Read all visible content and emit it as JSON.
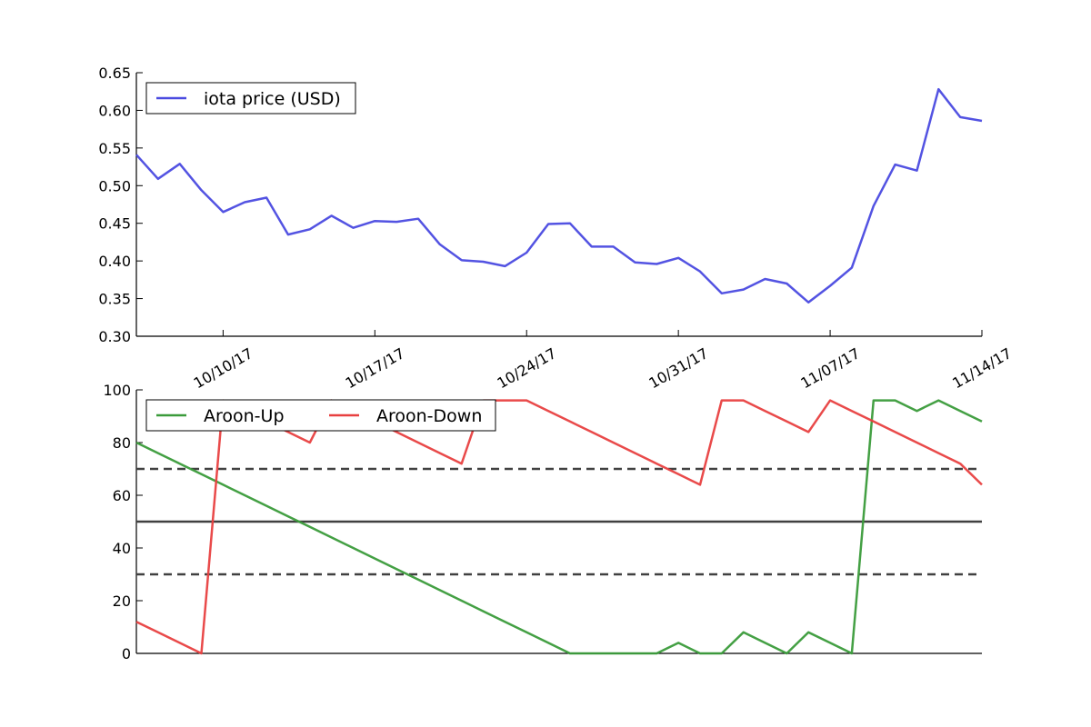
{
  "chart_data": [
    {
      "type": "line",
      "title": "",
      "xlabel": "",
      "ylabel": "",
      "ylim": [
        0.3,
        0.65
      ],
      "yticks": [
        "0.30",
        "0.35",
        "0.40",
        "0.45",
        "0.50",
        "0.55",
        "0.60",
        "0.65"
      ],
      "xticks": [
        "10/10/17",
        "10/17/17",
        "10/24/17",
        "10/31/17",
        "11/07/17",
        "11/14/17"
      ],
      "x": [
        "10/06/17",
        "10/07/17",
        "10/08/17",
        "10/09/17",
        "10/10/17",
        "10/11/17",
        "10/12/17",
        "10/13/17",
        "10/14/17",
        "10/15/17",
        "10/16/17",
        "10/17/17",
        "10/18/17",
        "10/19/17",
        "10/20/17",
        "10/21/17",
        "10/22/17",
        "10/23/17",
        "10/24/17",
        "10/25/17",
        "10/26/17",
        "10/27/17",
        "10/28/17",
        "10/29/17",
        "10/30/17",
        "10/31/17",
        "11/01/17",
        "11/02/17",
        "11/03/17",
        "11/04/17",
        "11/05/17",
        "11/06/17",
        "11/07/17",
        "11/08/17",
        "11/09/17",
        "11/10/17",
        "11/11/17",
        "11/12/17",
        "11/13/17",
        "11/14/17"
      ],
      "grid": false,
      "legend_position": "upper-left",
      "series": [
        {
          "name": "iota price (USD)",
          "color": "#4a4ae0",
          "values": [
            0.541,
            0.509,
            0.529,
            0.494,
            0.465,
            0.478,
            0.484,
            0.435,
            0.442,
            0.46,
            0.444,
            0.453,
            0.452,
            0.456,
            0.422,
            0.401,
            0.399,
            0.393,
            0.411,
            0.449,
            0.45,
            0.419,
            0.419,
            0.398,
            0.396,
            0.404,
            0.386,
            0.357,
            0.362,
            0.376,
            0.37,
            0.345,
            0.367,
            0.391,
            0.473,
            0.528,
            0.52,
            0.628,
            0.591,
            0.586
          ]
        }
      ]
    },
    {
      "type": "line",
      "title": "",
      "xlabel": "",
      "ylabel": "",
      "ylim": [
        0,
        100
      ],
      "yticks": [
        "0",
        "20",
        "40",
        "60",
        "80",
        "100"
      ],
      "x": [
        "10/06/17",
        "10/07/17",
        "10/08/17",
        "10/09/17",
        "10/10/17",
        "10/11/17",
        "10/12/17",
        "10/13/17",
        "10/14/17",
        "10/15/17",
        "10/16/17",
        "10/17/17",
        "10/18/17",
        "10/19/17",
        "10/20/17",
        "10/21/17",
        "10/22/17",
        "10/23/17",
        "10/24/17",
        "10/25/17",
        "10/26/17",
        "10/27/17",
        "10/28/17",
        "10/29/17",
        "10/30/17",
        "10/31/17",
        "11/01/17",
        "11/02/17",
        "11/03/17",
        "11/04/17",
        "11/05/17",
        "11/06/17",
        "11/07/17",
        "11/08/17",
        "11/09/17",
        "11/10/17",
        "11/11/17",
        "11/12/17",
        "11/13/17",
        "11/14/17"
      ],
      "grid": false,
      "legend_position": "upper-left",
      "reference_lines": [
        {
          "y": 70,
          "style": "dashed",
          "color": "#404040"
        },
        {
          "y": 50,
          "style": "solid",
          "color": "#404040"
        },
        {
          "y": 30,
          "style": "dashed",
          "color": "#404040"
        }
      ],
      "series": [
        {
          "name": "Aroon-Up",
          "color": "#3a9b3a",
          "values": [
            80,
            76,
            72,
            68,
            64,
            60,
            56,
            52,
            48,
            44,
            40,
            36,
            32,
            28,
            24,
            20,
            16,
            12,
            8,
            4,
            0,
            0,
            0,
            0,
            0,
            4,
            0,
            0,
            8,
            4,
            0,
            8,
            4,
            0,
            96,
            96,
            92,
            96,
            92,
            88
          ]
        },
        {
          "name": "Aroon-Down",
          "color": "#e84040",
          "values": [
            12,
            8,
            4,
            0,
            96,
            92,
            88,
            84,
            80,
            96,
            92,
            88,
            84,
            80,
            76,
            72,
            96,
            96,
            96,
            92,
            88,
            84,
            80,
            76,
            72,
            68,
            64,
            96,
            96,
            92,
            88,
            84,
            96,
            92,
            88,
            84,
            80,
            76,
            72,
            64
          ]
        }
      ]
    }
  ]
}
